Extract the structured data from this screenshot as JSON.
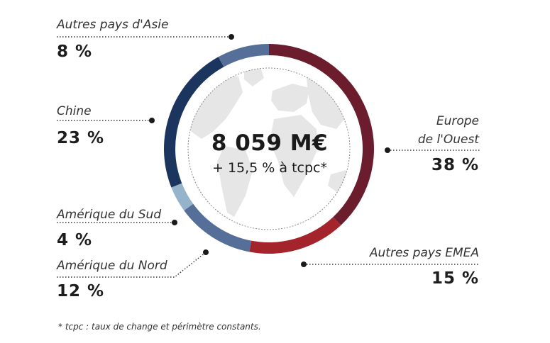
{
  "chart_data": {
    "type": "donut",
    "center": {
      "value": "8 059 M€",
      "subtitle": "+ 15,5 % à tcpc*"
    },
    "segments": [
      {
        "name": "Europe de l'Ouest",
        "label_lines": [
          "Europe",
          "de l'Ouest"
        ],
        "value": 38,
        "display": "38 %",
        "color": "#6b1d2e"
      },
      {
        "name": "Autres pays EMEA",
        "label_lines": [
          "Autres pays EMEA"
        ],
        "value": 15,
        "display": "15 %",
        "color": "#a3252b"
      },
      {
        "name": "Amérique du Nord",
        "label_lines": [
          "Amérique du Nord"
        ],
        "value": 12,
        "display": "12 %",
        "color": "#556f99"
      },
      {
        "name": "Amérique du Sud",
        "label_lines": [
          "Amérique du Sud"
        ],
        "value": 4,
        "display": "4 %",
        "color": "#95b3ca"
      },
      {
        "name": "Chine",
        "label_lines": [
          "Chine"
        ],
        "value": 23,
        "display": "23 %",
        "color": "#1c355f"
      },
      {
        "name": "Autres pays d'Asie",
        "label_lines": [
          "Autres pays d'Asie"
        ],
        "value": 8,
        "display": "8 %",
        "color": "#556f99"
      }
    ],
    "unit": "%"
  },
  "footnote": "* tcpc : taux de change et périmètre constants."
}
